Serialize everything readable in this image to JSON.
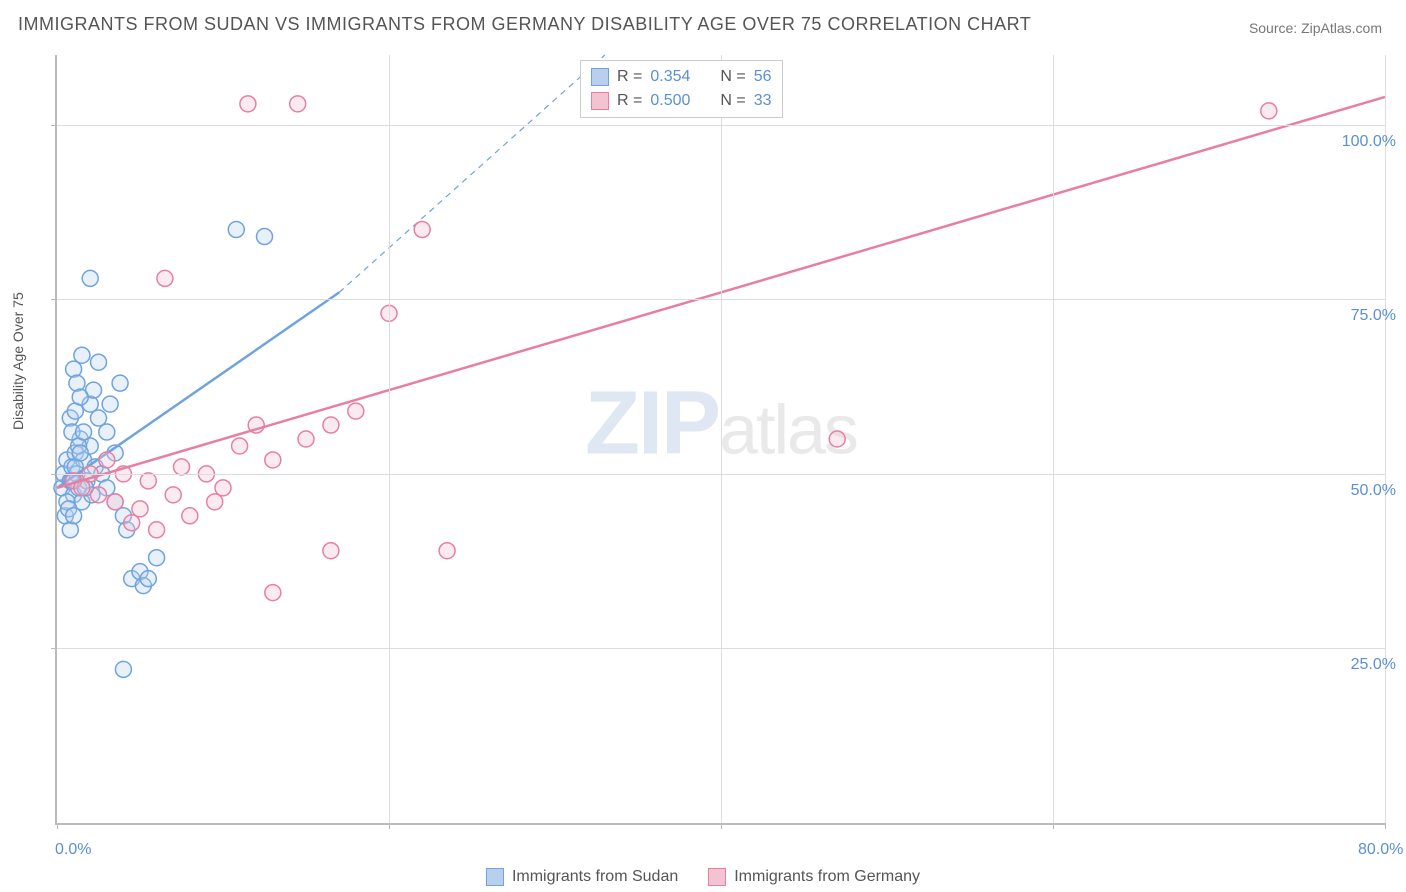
{
  "title": "IMMIGRANTS FROM SUDAN VS IMMIGRANTS FROM GERMANY DISABILITY AGE OVER 75 CORRELATION CHART",
  "source_label": "Source: ZipAtlas.com",
  "y_axis_label": "Disability Age Over 75",
  "watermark": {
    "zip": "ZIP",
    "atlas": "atlas"
  },
  "chart": {
    "type": "scatter",
    "xlim": [
      0,
      80
    ],
    "ylim": [
      0,
      110
    ],
    "x_ticks": [
      0,
      20,
      40,
      60,
      80
    ],
    "x_tick_labels": [
      "0.0%",
      "",
      "",
      "",
      "80.0%"
    ],
    "y_ticks": [
      25,
      50,
      75,
      100
    ],
    "y_tick_labels": [
      "25.0%",
      "50.0%",
      "75.0%",
      "100.0%"
    ],
    "grid_color": "#dddddd",
    "axis_color": "#bbbbbb",
    "background_color": "#ffffff",
    "point_radius": 8,
    "point_stroke_width": 1.5,
    "point_fill_opacity": 0.08,
    "series": [
      {
        "name": "Immigrants from Sudan",
        "color_stroke": "#6fa3e0",
        "color_fill": "#b8d0ed",
        "R": 0.354,
        "N": 56,
        "trend": {
          "x1": 0,
          "y1": 48,
          "x2": 17,
          "y2": 76,
          "width": 2.5,
          "dash_extend": {
            "x2": 33,
            "y2": 110
          }
        },
        "points": [
          [
            0.3,
            48
          ],
          [
            0.4,
            50
          ],
          [
            0.6,
            52
          ],
          [
            0.8,
            49
          ],
          [
            0.9,
            51
          ],
          [
            1.0,
            47
          ],
          [
            1.1,
            53
          ],
          [
            1.2,
            50
          ],
          [
            1.3,
            48
          ],
          [
            1.4,
            55
          ],
          [
            1.5,
            46
          ],
          [
            1.6,
            52
          ],
          [
            1.8,
            49
          ],
          [
            2.0,
            54
          ],
          [
            2.1,
            47
          ],
          [
            2.3,
            51
          ],
          [
            2.5,
            58
          ],
          [
            2.7,
            50
          ],
          [
            3.0,
            56
          ],
          [
            3.2,
            60
          ],
          [
            3.5,
            53
          ],
          [
            3.8,
            63
          ],
          [
            4.0,
            44
          ],
          [
            4.2,
            42
          ],
          [
            4.5,
            35
          ],
          [
            5.0,
            36
          ],
          [
            5.2,
            34
          ],
          [
            5.5,
            35
          ],
          [
            6.0,
            38
          ],
          [
            1.0,
            65
          ],
          [
            1.2,
            63
          ],
          [
            1.5,
            67
          ],
          [
            2.0,
            60
          ],
          [
            2.2,
            62
          ],
          [
            2.5,
            66
          ],
          [
            0.8,
            58
          ],
          [
            0.9,
            56
          ],
          [
            1.1,
            59
          ],
          [
            1.4,
            61
          ],
          [
            3.0,
            48
          ],
          [
            3.5,
            46
          ],
          [
            0.5,
            44
          ],
          [
            0.6,
            46
          ],
          [
            0.7,
            45
          ],
          [
            4.0,
            22
          ],
          [
            10.8,
            85
          ],
          [
            12.5,
            84
          ],
          [
            2.0,
            78
          ],
          [
            0.8,
            42
          ],
          [
            1.0,
            44
          ],
          [
            1.3,
            54
          ],
          [
            1.6,
            56
          ],
          [
            0.9,
            49
          ],
          [
            1.1,
            51
          ],
          [
            1.4,
            53
          ],
          [
            1.7,
            48
          ]
        ]
      },
      {
        "name": "Immigrants from Germany",
        "color_stroke": "#e87fa2",
        "color_fill": "#f4c3d2",
        "R": 0.5,
        "N": 33,
        "trend": {
          "x1": 0,
          "y1": 48,
          "x2": 80,
          "y2": 104,
          "width": 2.5
        },
        "points": [
          [
            1.0,
            49
          ],
          [
            1.5,
            48
          ],
          [
            2.0,
            50
          ],
          [
            2.5,
            47
          ],
          [
            3.0,
            52
          ],
          [
            3.5,
            46
          ],
          [
            4.0,
            50
          ],
          [
            5.0,
            45
          ],
          [
            6.0,
            42
          ],
          [
            7.0,
            47
          ],
          [
            8.0,
            44
          ],
          [
            9.0,
            50
          ],
          [
            10.0,
            48
          ],
          [
            11.0,
            54
          ],
          [
            12.0,
            57
          ],
          [
            13.0,
            52
          ],
          [
            15.0,
            55
          ],
          [
            16.5,
            57
          ],
          [
            18.0,
            59
          ],
          [
            6.5,
            78
          ],
          [
            20.0,
            73
          ],
          [
            22.0,
            85
          ],
          [
            23.5,
            39
          ],
          [
            16.5,
            39
          ],
          [
            13.0,
            33
          ],
          [
            11.5,
            103
          ],
          [
            14.5,
            103
          ],
          [
            47.0,
            55
          ],
          [
            73.0,
            102
          ],
          [
            4.5,
            43
          ],
          [
            5.5,
            49
          ],
          [
            7.5,
            51
          ],
          [
            9.5,
            46
          ]
        ]
      }
    ]
  },
  "stats_legend": {
    "rows": [
      {
        "series_idx": 0,
        "r_label": "R  =",
        "n_label": "N  ="
      },
      {
        "series_idx": 1,
        "r_label": "R  =",
        "n_label": "N  ="
      }
    ]
  }
}
